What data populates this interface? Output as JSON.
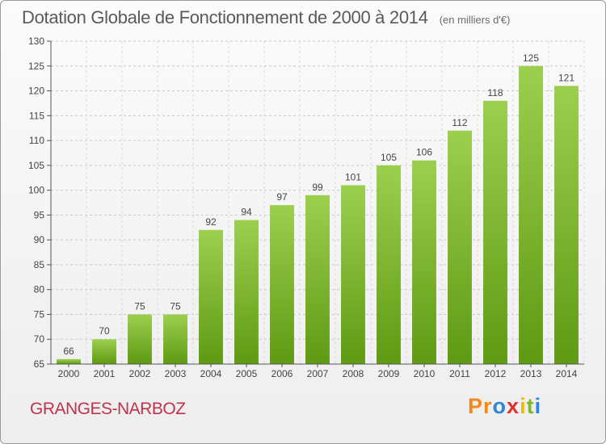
{
  "chart_data": {
    "type": "bar",
    "title": "Dotation Globale de Fonctionnement de 2000 à 2014",
    "unit_label": "(en milliers d'€)",
    "categories": [
      "2000",
      "2001",
      "2002",
      "2003",
      "2004",
      "2005",
      "2006",
      "2007",
      "2008",
      "2009",
      "2010",
      "2011",
      "2012",
      "2013",
      "2014"
    ],
    "values": [
      66,
      70,
      75,
      75,
      92,
      94,
      97,
      99,
      101,
      105,
      106,
      112,
      118,
      125,
      121
    ],
    "xlabel": "",
    "ylabel": "",
    "ylim": [
      65,
      130
    ],
    "yticks": [
      65,
      70,
      75,
      80,
      85,
      90,
      95,
      100,
      105,
      110,
      115,
      120,
      125,
      130
    ],
    "grid": true,
    "legend": "none",
    "bar_color_top": "#9ccf4e",
    "bar_color_bottom": "#5f9a14"
  },
  "footer": {
    "commune": "GRANGES-NARBOZ",
    "commune_color": "#c0334a"
  },
  "logo": {
    "letters": [
      "P",
      "r",
      "o",
      "x",
      "i",
      "t",
      "i"
    ],
    "colors": [
      "#f08a1c",
      "#f08a1c",
      "#2e86d6",
      "#e0302a",
      "#f5b800",
      "#7bb82c",
      "#2e86d6"
    ]
  }
}
